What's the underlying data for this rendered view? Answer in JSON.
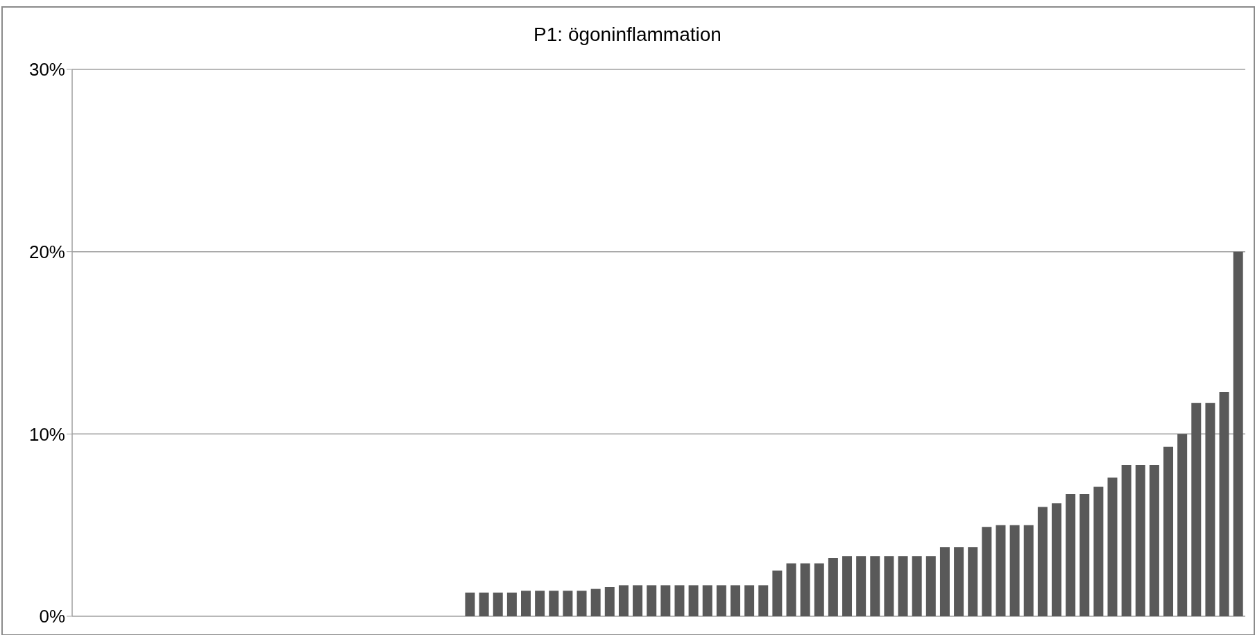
{
  "chart_data": {
    "type": "bar",
    "title": "P1: ögoninflammation",
    "categories": [
      null,
      null,
      null,
      null,
      null,
      null,
      null,
      null,
      null,
      null,
      null,
      null,
      null,
      null,
      null,
      null,
      null,
      null,
      null,
      null,
      null,
      null,
      null,
      null,
      null,
      null,
      null,
      null,
      null,
      null,
      null,
      null,
      null,
      null,
      null,
      null,
      null,
      null,
      null,
      null,
      null,
      null,
      null,
      null,
      null,
      null,
      null,
      null,
      null,
      null,
      null,
      null,
      null,
      null,
      null,
      null,
      null,
      null,
      null,
      null,
      null,
      null,
      null,
      null,
      null,
      null,
      null,
      null,
      null,
      null,
      null,
      null,
      null,
      null,
      null,
      null,
      null,
      null,
      null,
      null,
      null,
      null,
      null,
      null
    ],
    "values": [
      0,
      0,
      0,
      0,
      0,
      0,
      0,
      0,
      0,
      0,
      0,
      0,
      0,
      0,
      0,
      0,
      0,
      0,
      0,
      0,
      0,
      0,
      0,
      0,
      0,
      0,
      0,
      0,
      1.3,
      1.3,
      1.3,
      1.3,
      1.4,
      1.4,
      1.4,
      1.4,
      1.4,
      1.5,
      1.6,
      1.7,
      1.7,
      1.7,
      1.7,
      1.7,
      1.7,
      1.7,
      1.7,
      1.7,
      1.7,
      1.7,
      2.5,
      2.9,
      2.9,
      2.9,
      3.2,
      3.3,
      3.3,
      3.3,
      3.3,
      3.3,
      3.3,
      3.3,
      3.8,
      3.8,
      3.8,
      4.9,
      5.0,
      5.0,
      5.0,
      6.0,
      6.2,
      6.7,
      6.7,
      7.1,
      7.6,
      8.3,
      8.3,
      8.3,
      9.3,
      10.0,
      11.7,
      11.7,
      12.3,
      20.0
    ],
    "color": "#595959",
    "ylim": [
      0,
      30
    ],
    "yticks": [
      {
        "value": 0,
        "label": "0%"
      },
      {
        "value": 10,
        "label": "10%"
      },
      {
        "value": 20,
        "label": "20%"
      },
      {
        "value": 30,
        "label": "30%"
      }
    ],
    "grid": "y",
    "tick_labels": "y"
  }
}
